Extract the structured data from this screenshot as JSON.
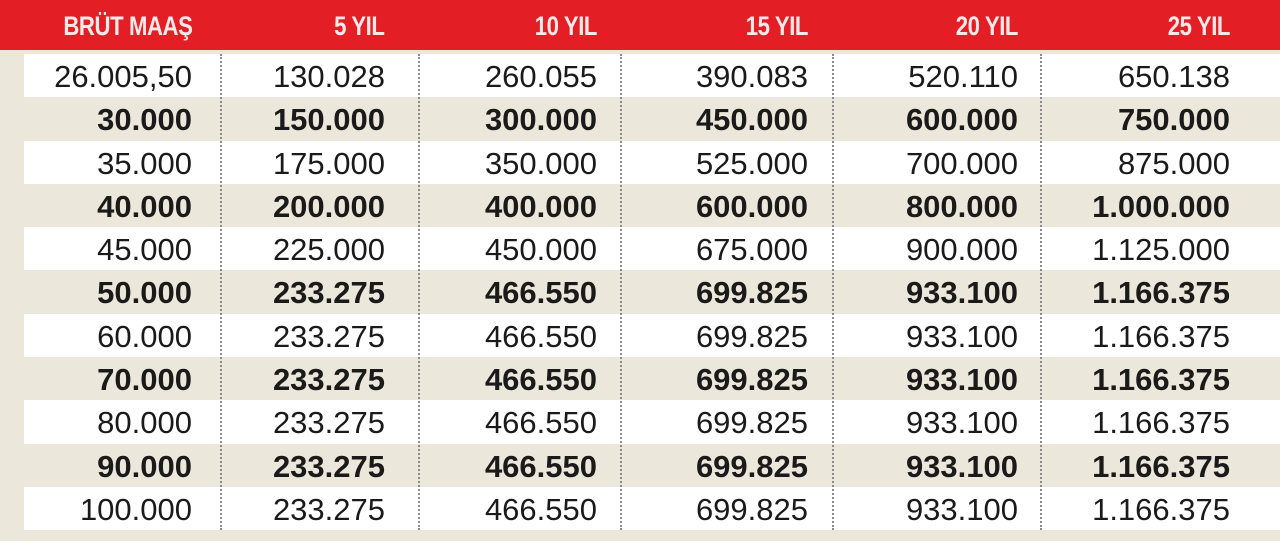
{
  "chart_data": {
    "type": "table",
    "columns": [
      "BRÜT MAAŞ",
      "5 YIL",
      "10 YIL",
      "15 YIL",
      "20 YIL",
      "25 YIL"
    ],
    "rows": [
      [
        "26.005,50",
        "130.028",
        "260.055",
        "390.083",
        "520.110",
        "650.138"
      ],
      [
        "30.000",
        "150.000",
        "300.000",
        "450.000",
        "600.000",
        "750.000"
      ],
      [
        "35.000",
        "175.000",
        "350.000",
        "525.000",
        "700.000",
        "875.000"
      ],
      [
        "40.000",
        "200.000",
        "400.000",
        "600.000",
        "800.000",
        "1.000.000"
      ],
      [
        "45.000",
        "225.000",
        "450.000",
        "675.000",
        "900.000",
        "1.125.000"
      ],
      [
        "50.000",
        "233.275",
        "466.550",
        "699.825",
        "933.100",
        "1.166.375"
      ],
      [
        "60.000",
        "233.275",
        "466.550",
        "699.825",
        "933.100",
        "1.166.375"
      ],
      [
        "70.000",
        "233.275",
        "466.550",
        "699.825",
        "933.100",
        "1.166.375"
      ],
      [
        "80.000",
        "233.275",
        "466.550",
        "699.825",
        "933.100",
        "1.166.375"
      ],
      [
        "90.000",
        "233.275",
        "466.550",
        "699.825",
        "933.100",
        "1.166.375"
      ],
      [
        "100.000",
        "233.275",
        "466.550",
        "699.825",
        "933.100",
        "1.166.375"
      ]
    ],
    "colors": {
      "header": "#e31e24",
      "row_alt": "#ebe7da",
      "row": "#ffffff"
    }
  }
}
